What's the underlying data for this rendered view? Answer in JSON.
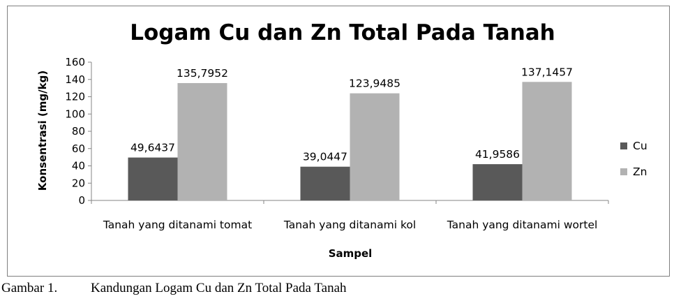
{
  "chart_data": {
    "type": "bar",
    "title": "Logam Cu dan Zn Total Pada Tanah",
    "xlabel": "Sampel",
    "ylabel": "Konsentrasi (mg/kg)",
    "ylim": [
      0,
      160
    ],
    "yticks": [
      0,
      20,
      40,
      60,
      80,
      100,
      120,
      140,
      160
    ],
    "grid": false,
    "legend_position": "right",
    "categories": [
      "Tanah yang ditanami tomat",
      "Tanah yang ditanami kol",
      "Tanah yang ditanami wortel"
    ],
    "series": [
      {
        "name": "Cu",
        "values": [
          49.6437,
          39.0447,
          41.9586
        ],
        "labels": [
          "49,6437",
          "39,0447",
          "41,9586"
        ],
        "color": "#595959"
      },
      {
        "name": "Zn",
        "values": [
          135.7952,
          123.9485,
          137.1457
        ],
        "labels": [
          "135,7952",
          "123,9485",
          "137,1457"
        ],
        "color": "#b2b2b2"
      }
    ]
  },
  "caption": {
    "label": "Gambar 1.",
    "text": "Kandungan Logam Cu dan Zn Total Pada Tanah"
  }
}
